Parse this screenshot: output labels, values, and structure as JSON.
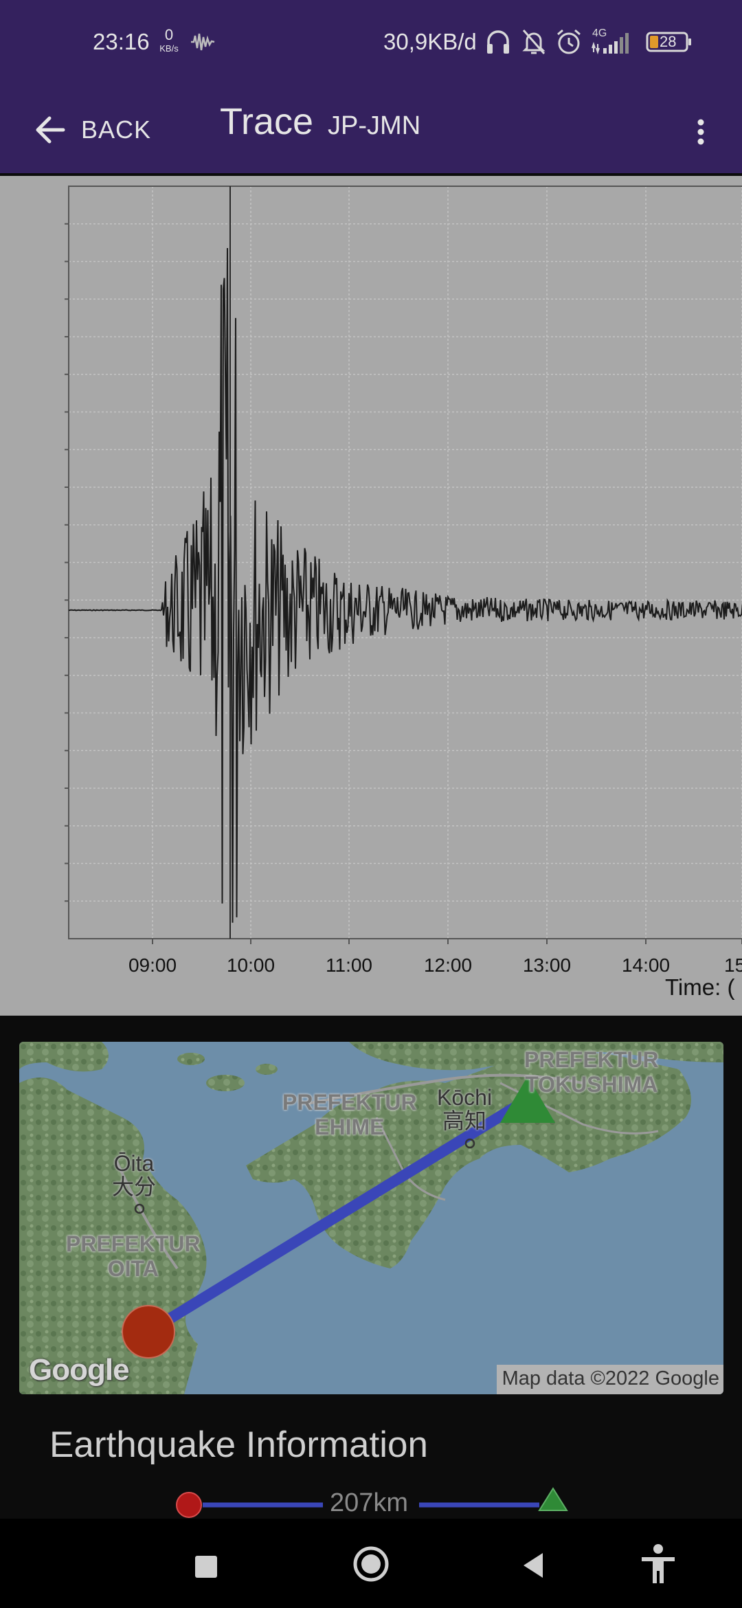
{
  "status_bar": {
    "time": "23:16",
    "net_speed_value": "0",
    "net_speed_unit": "KB/s",
    "data_usage": "30,9KB/d",
    "network_type": "4G",
    "battery": "28",
    "icons": [
      "waveform-icon",
      "headphones-icon",
      "bell-off-icon",
      "alarm-icon",
      "signal-icon",
      "battery-icon"
    ]
  },
  "app_bar": {
    "back_label": "BACK",
    "title": "Trace",
    "station": "JP-JMN",
    "menu_icon": "more-vert-icon"
  },
  "trace": {
    "x_ticks": [
      "09:00",
      "10:00",
      "11:00",
      "12:00",
      "13:00",
      "14:00",
      "15"
    ],
    "x_axis_label": "Time: ("
  },
  "map": {
    "labels": {
      "prefecture_tokushima": "PREFEKTUR\nTOKUSHIMA",
      "prefecture_ehime": "PREFEKTUR\nEHIME",
      "prefecture_oita": "PREFEKTUR\nOITA",
      "city_kochi": "Kōchi\n高知",
      "city_oita": "Ōita\n大分"
    },
    "logo": "Google",
    "credit": "Map data ©2022 Google",
    "epicenter_color": "#a32b10",
    "station_color": "#2f8a36",
    "path_color": "#3a46b8"
  },
  "info": {
    "title": "Earthquake Information",
    "distance": "207km"
  },
  "nav_bar": {
    "icons": [
      "recents-square-icon",
      "home-circle-icon",
      "back-triangle-icon",
      "accessibility-icon"
    ]
  }
}
